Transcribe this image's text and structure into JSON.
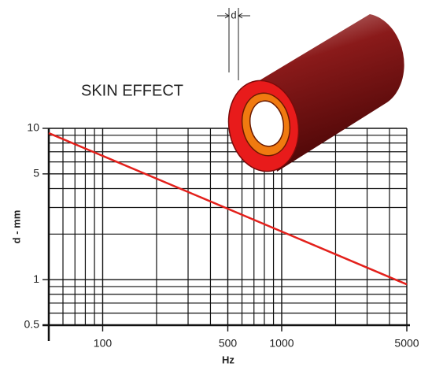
{
  "chart_data": {
    "type": "line",
    "title": "SKIN EFFECT",
    "annotation": "d",
    "x_label": "Hz",
    "y_label": "d - mm",
    "log_x": true,
    "log_y": true,
    "grid": true,
    "xlim": [
      50,
      5000
    ],
    "ylim": [
      0.5,
      10
    ],
    "xticks": [
      100,
      500,
      1000,
      5000
    ],
    "yticks": [
      0.5,
      1,
      5,
      10
    ],
    "minor_xticks": [
      60,
      70,
      80,
      90,
      200,
      300,
      400,
      600,
      700,
      800,
      900,
      2000,
      3000,
      4000
    ],
    "minor_yticks": [
      0.6,
      0.7,
      0.8,
      0.9,
      2,
      3,
      4,
      6,
      7,
      8,
      9
    ],
    "x": [
      50,
      5000
    ],
    "series": [
      {
        "color": "#e3201b",
        "values": [
          9.3,
          0.93
        ]
      }
    ]
  }
}
